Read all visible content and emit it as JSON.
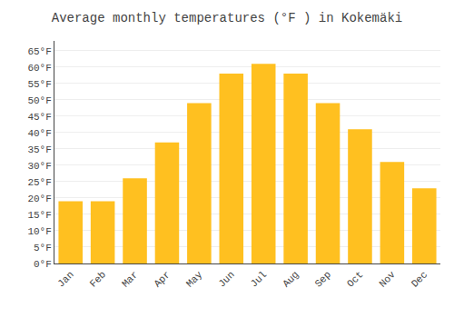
{
  "chart_data": {
    "type": "bar",
    "title": "Average monthly temperatures (°F ) in Kokemäki",
    "categories": [
      "Jan",
      "Feb",
      "Mar",
      "Apr",
      "May",
      "Jun",
      "Jul",
      "Aug",
      "Sep",
      "Oct",
      "Nov",
      "Dec"
    ],
    "values": [
      19,
      19,
      26,
      37,
      49,
      58,
      61,
      58,
      49,
      41,
      31,
      23
    ],
    "color": "#FFC020",
    "ylim": [
      0,
      68
    ],
    "yticks": [
      {
        "value": 0,
        "label": "0°F"
      },
      {
        "value": 5,
        "label": "5°F"
      },
      {
        "value": 10,
        "label": "10°F"
      },
      {
        "value": 15,
        "label": "15°F"
      },
      {
        "value": 20,
        "label": "20°F"
      },
      {
        "value": 25,
        "label": "25°F"
      },
      {
        "value": 30,
        "label": "30°F"
      },
      {
        "value": 35,
        "label": "35°F"
      },
      {
        "value": 40,
        "label": "40°F"
      },
      {
        "value": 45,
        "label": "45°F"
      },
      {
        "value": 50,
        "label": "50°F"
      },
      {
        "value": 55,
        "label": "55°F"
      },
      {
        "value": 60,
        "label": "60°F"
      },
      {
        "value": 65,
        "label": "65°F"
      }
    ],
    "grid": true
  }
}
